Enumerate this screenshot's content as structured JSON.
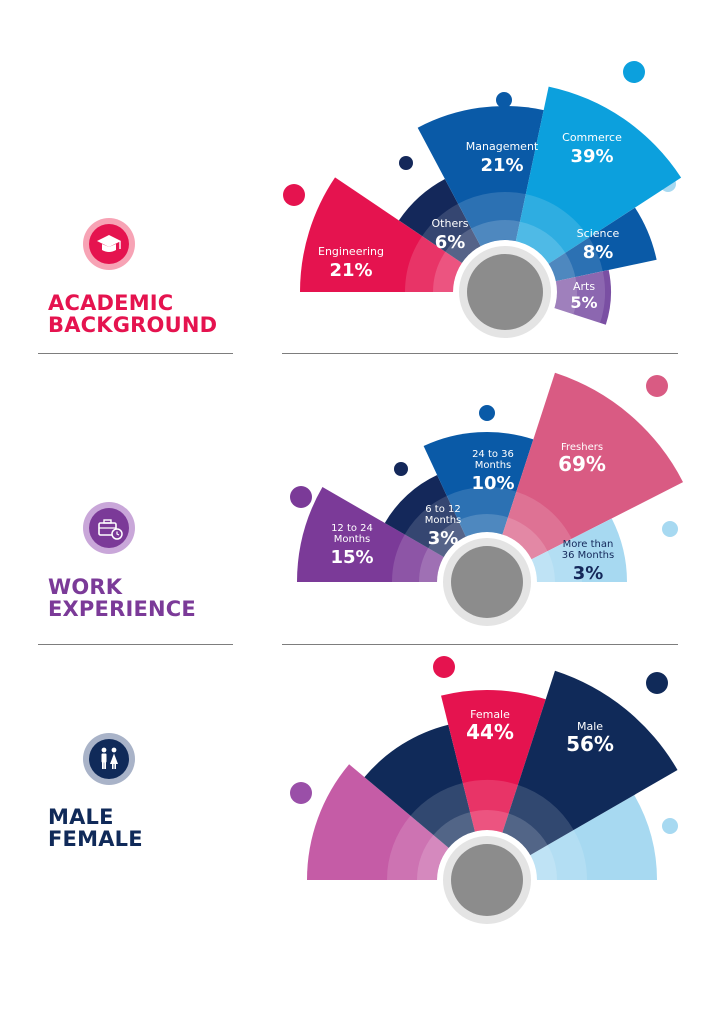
{
  "sections": {
    "academic": {
      "title": "ACADEMIC\nBACKGROUND",
      "color": "#e5134f",
      "icon": "graduation-cap-icon"
    },
    "work": {
      "title": "WORK\nEXPERIENCE",
      "color": "#7b3a98",
      "icon": "briefcase-clock-icon"
    },
    "gender": {
      "title": "MALE\nFEMALE",
      "color": "#102a59",
      "icon": "male-female-icon"
    }
  },
  "chart_data": [
    {
      "type": "pie",
      "title": "ACADEMIC BACKGROUND",
      "slices": [
        {
          "label": "Engineering",
          "value": 21,
          "display": "21%",
          "color": "#e5134f"
        },
        {
          "label": "Others",
          "value": 6,
          "display": "6%",
          "color": "#14285a"
        },
        {
          "label": "Management",
          "value": 21,
          "display": "21%",
          "color": "#0a5aa7"
        },
        {
          "label": "Commerce",
          "value": 39,
          "display": "39%",
          "color": "#0ca0dd"
        },
        {
          "label": "Science",
          "value": 8,
          "display": "8%",
          "color": "#0a5aa7"
        },
        {
          "label": "Arts",
          "value": 5,
          "display": "5%",
          "color": "#7a4fa3"
        }
      ]
    },
    {
      "type": "pie",
      "title": "WORK EXPERIENCE",
      "slices": [
        {
          "label": "12 to 24\nMonths",
          "value": 15,
          "display": "15%",
          "color": "#7b3a98"
        },
        {
          "label": "6 to 12\nMonths",
          "value": 3,
          "display": "3%",
          "color": "#14285a"
        },
        {
          "label": "24 to 36\nMonths",
          "value": 10,
          "display": "10%",
          "color": "#0a5aa7"
        },
        {
          "label": "Freshers",
          "value": 69,
          "display": "69%",
          "color": "#d95b83"
        },
        {
          "label": "More than\n36 Months",
          "value": 3,
          "display": "3%",
          "color": "#a7d9f1"
        }
      ]
    },
    {
      "type": "pie",
      "title": "MALE FEMALE",
      "slices": [
        {
          "label": "Female",
          "value": 44,
          "display": "44%",
          "color": "#e5134f"
        },
        {
          "label": "Male",
          "value": 56,
          "display": "56%",
          "color": "#102a59"
        }
      ]
    }
  ]
}
